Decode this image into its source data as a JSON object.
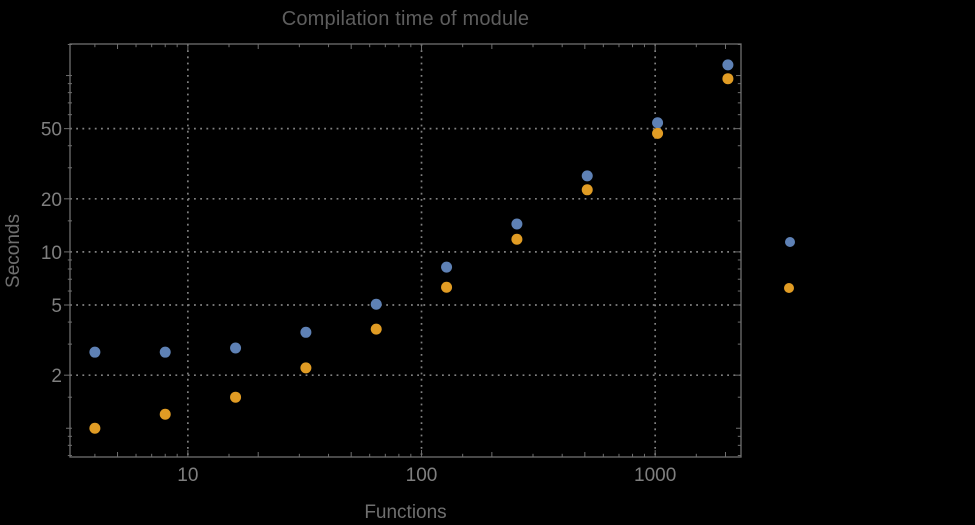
{
  "window": {
    "background": "#000000"
  },
  "chart": {
    "title": "Compilation time of module",
    "x_axis_label": "Functions",
    "y_axis_label": "Seconds"
  },
  "chart_data": {
    "type": "scatter",
    "title": "Compilation time of module",
    "xlabel": "Functions",
    "ylabel": "Seconds",
    "x_scale": "log",
    "y_scale": "log",
    "grid": "dotted lines at labeled ticks only",
    "x": [
      4,
      8,
      16,
      32,
      64,
      128,
      256,
      512,
      1024,
      2048
    ],
    "series": [
      {
        "name": "series-1-blue",
        "color": "#5E81B5",
        "values": [
          2.7,
          2.7,
          2.85,
          3.5,
          5.05,
          8.2,
          14.4,
          27,
          54,
          115
        ]
      },
      {
        "name": "series-2-orange",
        "color": "#E19C24",
        "values": [
          1.0,
          1.2,
          1.5,
          2.2,
          3.65,
          6.3,
          11.8,
          22.5,
          47,
          96
        ]
      }
    ],
    "xlim": [
      3.13,
      2330
    ],
    "ylim": [
      0.687,
      151
    ],
    "x_tick_values": [
      10,
      100,
      1000
    ],
    "x_tick_labels": [
      "10",
      "100",
      "1000"
    ],
    "y_tick_values": [
      2,
      5,
      10,
      20,
      50
    ],
    "y_tick_labels": [
      "2",
      "5",
      "10",
      "20",
      "50"
    ],
    "marker_diameter_px": 11,
    "legend": {
      "position": "outside-right",
      "labels_visible": false,
      "markers": [
        {
          "series": "series-1-blue",
          "color": "#5E81B5"
        },
        {
          "series": "series-2-orange",
          "color": "#E19C24"
        }
      ]
    },
    "colors": {
      "background": "#000000",
      "frame": "#6f6f6f",
      "gridline": "#818181",
      "tick_labels": "#7f7f7f",
      "axis_labels": "#6f6f6f",
      "title": "#5e5e5e"
    }
  }
}
